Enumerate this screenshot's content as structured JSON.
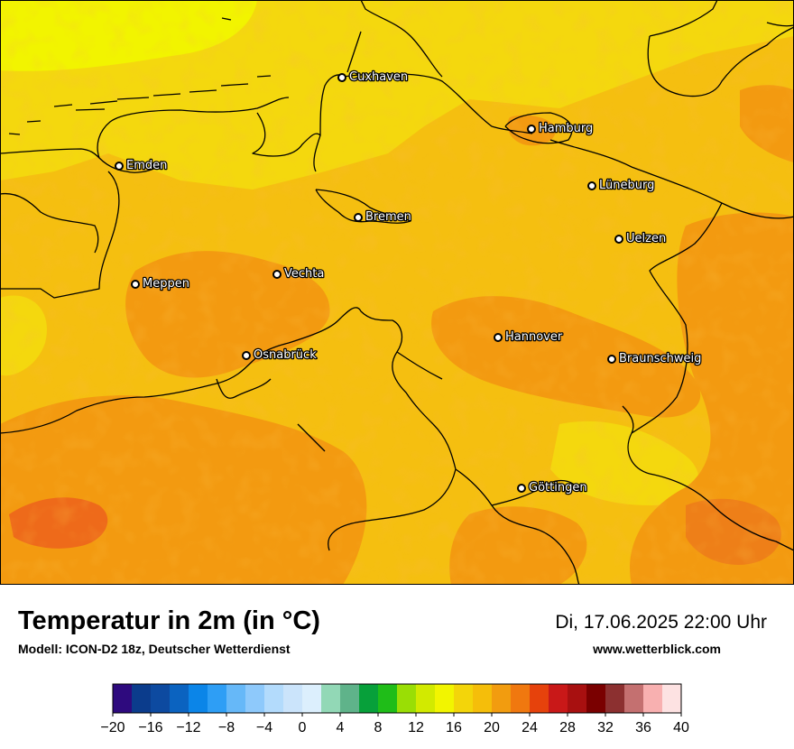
{
  "map": {
    "cities": [
      {
        "name": "Cuxhaven"
      },
      {
        "name": "Hamburg"
      },
      {
        "name": "Emden"
      },
      {
        "name": "Lüneburg"
      },
      {
        "name": "Bremen"
      },
      {
        "name": "Uelzen"
      },
      {
        "name": "Vechta"
      },
      {
        "name": "Meppen"
      },
      {
        "name": "Hannover"
      },
      {
        "name": "Osnabrück"
      },
      {
        "name": "Braunschweig"
      },
      {
        "name": "Göttingen"
      }
    ]
  },
  "footer": {
    "title": "Temperatur in 2m (in °C)",
    "subtitle": "Modell: ICON-D2 18z, Deutscher Wetterdienst",
    "datetime": "Di, 17.06.2025 22:00 Uhr",
    "website": "www.wetterblick.com"
  },
  "legend": {
    "min": -20,
    "max": 40,
    "step": 2,
    "tick_labels": [
      "−20",
      "−16",
      "−12",
      "−8",
      "−4",
      "0",
      "4",
      "8",
      "12",
      "16",
      "20",
      "24",
      "28",
      "32",
      "36",
      "40"
    ],
    "colors": [
      "#2e0a7e",
      "#0b3c8c",
      "#0d4aa0",
      "#0b63c0",
      "#0b85e8",
      "#2e9ef5",
      "#66b8f8",
      "#8ec9fb",
      "#b3dbfc",
      "#cbe4fb",
      "#dceffd",
      "#92d8b6",
      "#5fb38a",
      "#07a03a",
      "#1fbd18",
      "#9ade05",
      "#d2ea00",
      "#f2f500",
      "#f3d50a",
      "#f5be0a",
      "#f29c0f",
      "#f0780f",
      "#e6420c",
      "#c91818",
      "#a81010",
      "#7a0000",
      "#8c3030",
      "#c47070",
      "#f8b0b0",
      "#fde2e2"
    ]
  },
  "colors": {
    "temp_warm": "#f5bf10",
    "temp_warmer": "#f39a10",
    "temp_hot": "#ee7f18",
    "temp_mild": "#f4d80e",
    "temp_cool": "#f2f400",
    "border": "#000000"
  }
}
